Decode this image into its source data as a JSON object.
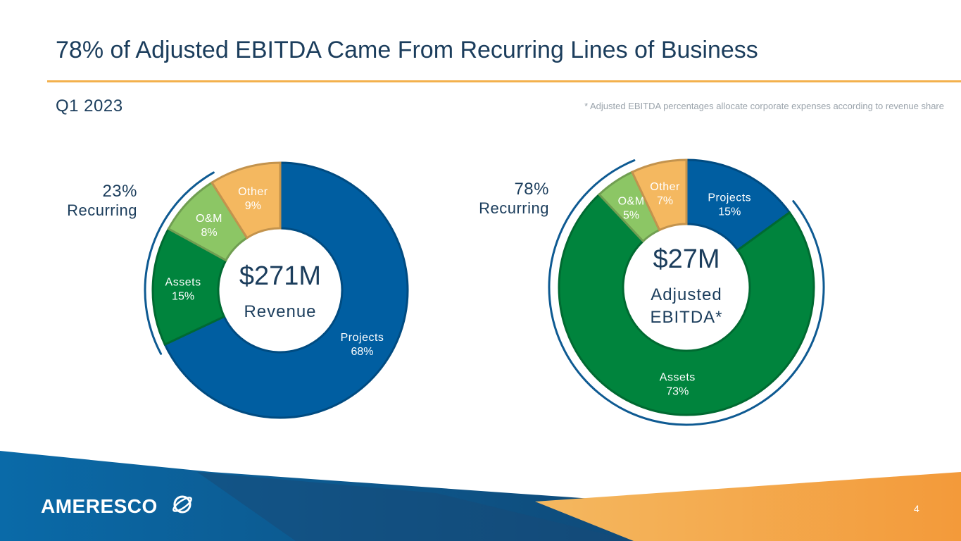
{
  "header": {
    "title": "78% of Adjusted EBITDA Came From Recurring Lines of Business",
    "period": "Q1 2023",
    "footnote": "* Adjusted EBITDA percentages allocate corporate expenses according to revenue share"
  },
  "colors": {
    "projects": "#005ea1",
    "assets": "#00843d",
    "om": "#8cc665",
    "other": "#f4b860",
    "navy": "#1b3d5c",
    "accent_orange": "#f3b14d"
  },
  "chart_data": [
    {
      "type": "pie",
      "style": "donut",
      "name": "revenue",
      "center_value": "$271M",
      "center_label": "Revenue",
      "recurring_pct": "23%",
      "recurring_label": "Recurring",
      "slices": [
        {
          "label": "Projects",
          "value": 68,
          "value_label": "68%",
          "key": "projects",
          "recurring": false
        },
        {
          "label": "Assets",
          "value": 15,
          "value_label": "15%",
          "key": "assets",
          "recurring": true
        },
        {
          "label": "O&M",
          "value": 8,
          "value_label": "8%",
          "key": "om",
          "recurring": true
        },
        {
          "label": "Other",
          "value": 9,
          "value_label": "9%",
          "key": "other",
          "recurring": false
        }
      ]
    },
    {
      "type": "pie",
      "style": "donut",
      "name": "adjusted-ebitda",
      "center_value": "$27M",
      "center_label": "Adjusted EBITDA*",
      "recurring_pct": "78%",
      "recurring_label": "Recurring",
      "slices": [
        {
          "label": "Projects",
          "value": 15,
          "value_label": "15%",
          "key": "projects",
          "recurring": false
        },
        {
          "label": "Assets",
          "value": 73,
          "value_label": "73%",
          "key": "assets",
          "recurring": true
        },
        {
          "label": "O&M",
          "value": 5,
          "value_label": "5%",
          "key": "om",
          "recurring": true
        },
        {
          "label": "Other",
          "value": 7,
          "value_label": "7%",
          "key": "other",
          "recurring": false
        }
      ]
    }
  ],
  "footer": {
    "logo_text": "AMERESCO",
    "page_number": "4"
  }
}
